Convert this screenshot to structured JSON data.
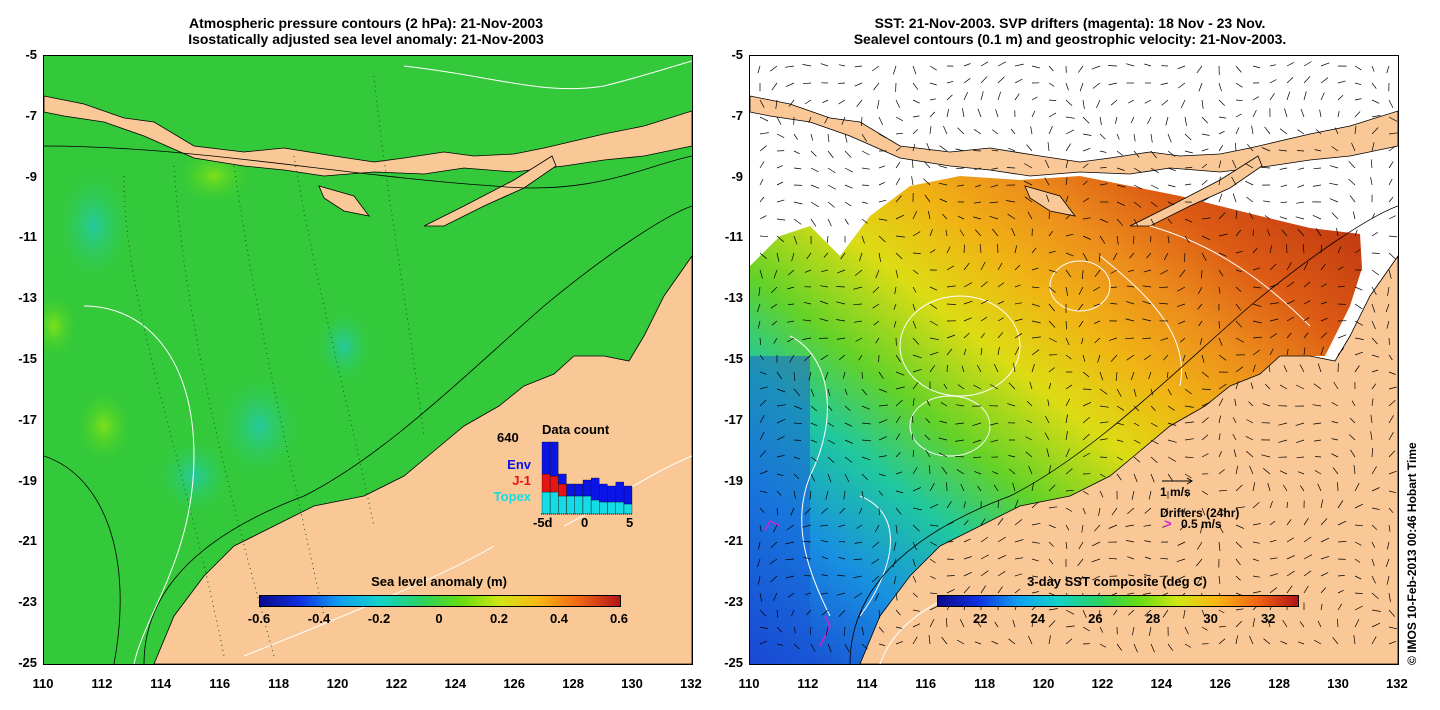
{
  "left_panel": {
    "title_line1": "Atmospheric pressure contours (2 hPa): 21-Nov-2003",
    "title_line2": "Isostatically adjusted sea level anomaly: 21-Nov-2003",
    "y_ticks": [
      "-5",
      "-7",
      "-9",
      "-11",
      "-13",
      "-15",
      "-17",
      "-19",
      "-21",
      "-23",
      "-25"
    ],
    "x_ticks": [
      "110",
      "112",
      "114",
      "116",
      "118",
      "120",
      "122",
      "124",
      "126",
      "128",
      "130",
      "132"
    ],
    "colorbar": {
      "label": "Sea level anomaly (m)",
      "ticks": [
        "-0.6",
        "-0.4",
        "-0.2",
        "0",
        "0.2",
        "0.4",
        "0.6"
      ],
      "range": [
        -0.6,
        0.6
      ]
    },
    "inset": {
      "title": "Data count",
      "max_label": "640",
      "legend": [
        {
          "name": "Env",
          "color": "#0a14e6"
        },
        {
          "name": "J-1",
          "color": "#e61414"
        },
        {
          "name": "Topex",
          "color": "#14dce6"
        }
      ],
      "x_ticks": [
        "-5d",
        "0",
        "5"
      ]
    }
  },
  "right_panel": {
    "title_line1": "SST: 21-Nov-2003. SVP drifters (magenta): 18 Nov - 23 Nov.",
    "title_line2": "Sealevel contours (0.1 m) and geostrophic velocity: 21-Nov-2003.",
    "y_ticks": [
      "-5",
      "-7",
      "-9",
      "-11",
      "-13",
      "-15",
      "-17",
      "-19",
      "-21",
      "-23",
      "-25"
    ],
    "x_ticks": [
      "110",
      "112",
      "114",
      "116",
      "118",
      "120",
      "122",
      "124",
      "126",
      "128",
      "130",
      "132"
    ],
    "colorbar": {
      "label": "3-day SST composite (deg C)",
      "ticks": [
        "22",
        "24",
        "26",
        "28",
        "30",
        "32"
      ],
      "range": [
        20.5,
        33
      ]
    },
    "velocity_legend": "1 m/s",
    "drifter_legend_title": "Drifters (24hr)",
    "drifter_legend_value": "0.5 m/s"
  },
  "credit": "© IMOS 10-Feb-2013 00:46 Hobart Time",
  "colors": {
    "land": "#f9c896",
    "sea_green": "#33cc33",
    "sst_cold": "#1a4ad6",
    "sst_warm": "#c83212"
  }
}
